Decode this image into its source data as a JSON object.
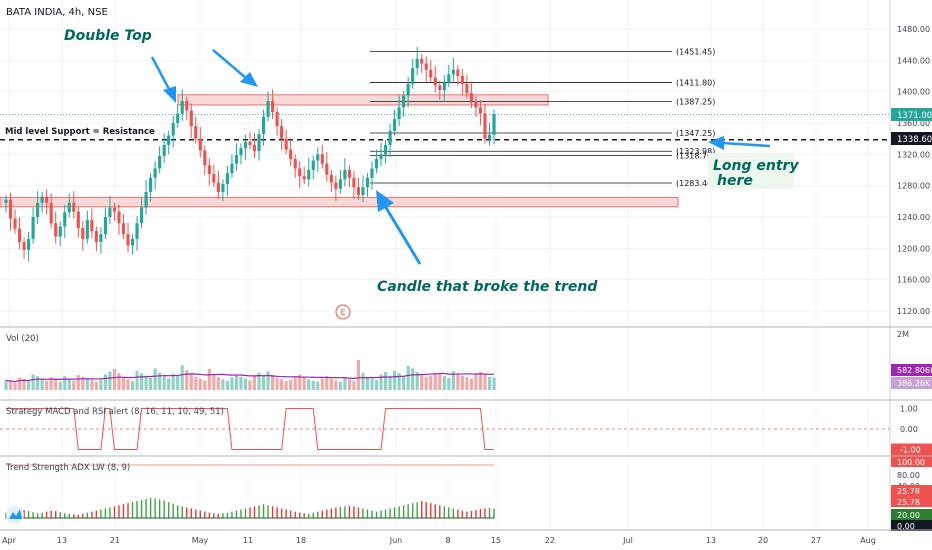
{
  "header": {
    "symbol_line": "BATA INDIA, 4h, NSE"
  },
  "colors": {
    "up": "#26a69a",
    "down": "#ef5350",
    "annotation_text": "#00695c",
    "arrow": "#2196f3",
    "zone_fill": "#f8d7d7",
    "zone_stroke": "#e57373",
    "vol_ma": "#9c27b0",
    "adx": "#ef9a9a"
  },
  "chart_data": [
    {
      "type": "candlestick",
      "title": "BATA INDIA, 4h, NSE",
      "ylim": [
        1100,
        1500
      ],
      "y_ticks": [
        "1480.00",
        "1440.00",
        "1400.00",
        "1360.00",
        "1320.00",
        "1280.00",
        "1240.00",
        "1200.00",
        "1160.00",
        "1120.00"
      ],
      "x_ticks": [
        "Apr",
        "13",
        "21",
        "May",
        "11",
        "18",
        "Jun",
        "8",
        "15",
        "22",
        "Jul",
        "13",
        "20",
        "27",
        "Aug"
      ],
      "price_labels": {
        "last": "1371.00",
        "entry": "1338.60"
      },
      "closes": [
        1262,
        1238,
        1225,
        1208,
        1198,
        1212,
        1240,
        1258,
        1266,
        1258,
        1232,
        1215,
        1228,
        1246,
        1258,
        1247,
        1226,
        1212,
        1236,
        1222,
        1208,
        1218,
        1240,
        1252,
        1247,
        1232,
        1218,
        1204,
        1212,
        1232,
        1252,
        1272,
        1290,
        1302,
        1318,
        1332,
        1344,
        1360,
        1372,
        1388,
        1376,
        1356,
        1340,
        1325,
        1306,
        1295,
        1284,
        1272,
        1282,
        1296,
        1308,
        1319,
        1328,
        1336,
        1332,
        1324,
        1346,
        1368,
        1388,
        1374,
        1356,
        1340,
        1326,
        1314,
        1302,
        1292,
        1288,
        1300,
        1312,
        1320,
        1308,
        1294,
        1284,
        1276,
        1288,
        1300,
        1290,
        1278,
        1268,
        1278,
        1290,
        1302,
        1314,
        1320,
        1332,
        1350,
        1365,
        1380,
        1395,
        1410,
        1430,
        1442,
        1436,
        1428,
        1418,
        1408,
        1402,
        1412,
        1422,
        1428,
        1420,
        1410,
        1398,
        1388,
        1380,
        1372,
        1340,
        1345,
        1371
      ],
      "levels": [
        {
          "label": "(1451.45)",
          "value": 1451.45
        },
        {
          "label": "(1411.80)",
          "value": 1411.8
        },
        {
          "label": "(1387.25)",
          "value": 1387.25
        },
        {
          "label": "(1347.25)",
          "value": 1347.25
        },
        {
          "label": "(1323.98)",
          "value": 1323.98
        },
        {
          "label": "(1318.70)",
          "value": 1318.7
        },
        {
          "label": "(1283.40)",
          "value": 1283.4
        }
      ],
      "zones": [
        {
          "name": "resistance-zone",
          "from": 1383,
          "to": 1396
        },
        {
          "name": "support-zone",
          "from": 1253,
          "to": 1265
        }
      ],
      "mid_level": 1338.6,
      "annotations": {
        "double_top": "Double Top",
        "mid_level": "Mid level Support = Resistance",
        "long_entry_1": "Long entry",
        "long_entry_2": "here",
        "candle_trend": "Candle that broke the trend",
        "earnings_marker": "E"
      }
    },
    {
      "type": "bar",
      "title": "Vol (20)",
      "ylim": [
        0,
        2000
      ],
      "y_ticks": [
        "2M"
      ],
      "values": [
        320,
        280,
        240,
        410,
        360,
        300,
        520,
        460,
        380,
        300,
        420,
        350,
        280,
        460,
        380,
        310,
        500,
        440,
        390,
        330,
        280,
        360,
        520,
        610,
        700,
        560,
        420,
        360,
        300,
        640,
        560,
        480,
        410,
        720,
        580,
        460,
        390,
        540,
        480,
        820,
        660,
        520,
        440,
        380,
        320,
        700,
        520,
        430,
        360,
        300,
        420,
        520,
        440,
        380,
        320,
        460,
        580,
        480,
        620,
        500,
        420,
        360,
        300,
        340,
        420,
        520,
        440,
        360,
        300,
        280,
        380,
        460,
        380,
        320,
        280,
        420,
        360,
        300,
        1000,
        580,
        440,
        380,
        340,
        520,
        600,
        480,
        640,
        560,
        460,
        800,
        720,
        600,
        520,
        440,
        480,
        560,
        520,
        460,
        400,
        620,
        520,
        480,
        420,
        380,
        560,
        600,
        520,
        440,
        420
      ],
      "ma_labels": {
        "ma": "582.806K",
        "last": "386.26K"
      }
    },
    {
      "type": "line",
      "title": "Strategy MACD and RSI alert (8, 16, 11, 10, 49, 51)",
      "ylim": [
        -1.5,
        1.5
      ],
      "y_ticks": [
        "1.00",
        "0.00",
        "-1.00"
      ],
      "values": [
        1,
        1,
        1,
        1,
        1,
        1,
        1,
        1,
        1,
        1,
        1,
        1,
        1,
        1,
        1,
        1,
        -1,
        -1,
        -1,
        -1,
        -1,
        -1,
        1,
        1,
        -1,
        -1,
        -1,
        -1,
        -1,
        -1,
        1,
        1,
        1,
        1,
        1,
        1,
        1,
        1,
        1,
        1,
        1,
        1,
        1,
        1,
        1,
        1,
        1,
        1,
        1,
        1,
        -1,
        -1,
        -1,
        -1,
        -1,
        -1,
        -1,
        -1,
        -1,
        -1,
        -1,
        -1,
        1,
        1,
        1,
        1,
        1,
        1,
        1,
        -1,
        -1,
        -1,
        -1,
        -1,
        -1,
        -1,
        -1,
        -1,
        -1,
        -1,
        -1,
        -1,
        -1,
        -1,
        1,
        1,
        1,
        1,
        1,
        1,
        1,
        1,
        1,
        1,
        1,
        1,
        1,
        1,
        1,
        1,
        1,
        1,
        1,
        1,
        1,
        1,
        -1,
        -1,
        -1
      ]
    },
    {
      "type": "bar",
      "title": "Trend Strength ADX LW (8, 9)",
      "ylim": [
        0,
        110
      ],
      "y_ticks": [
        "100.00",
        "80.00",
        "40.00",
        "25.78",
        "25.78",
        "20.00",
        "0.00"
      ],
      "values": [
        10,
        12,
        14,
        16,
        15,
        13,
        11,
        9,
        10,
        12,
        14,
        13,
        11,
        9,
        8,
        7,
        6,
        8,
        10,
        12,
        14,
        16,
        18,
        20,
        22,
        24,
        26,
        28,
        30,
        32,
        34,
        36,
        38,
        37,
        35,
        33,
        30,
        27,
        24,
        22,
        20,
        18,
        16,
        14,
        12,
        10,
        9,
        8,
        9,
        10,
        12,
        14,
        16,
        18,
        20,
        22,
        24,
        26,
        24,
        22,
        20,
        18,
        16,
        14,
        12,
        10,
        9,
        8,
        10,
        12,
        14,
        16,
        18,
        20,
        21,
        22,
        23,
        22,
        20,
        18,
        16,
        14,
        12,
        14,
        16,
        18,
        20,
        22,
        24,
        26,
        28,
        30,
        32,
        30,
        28,
        26,
        24,
        22,
        20,
        18,
        16,
        14,
        12,
        13,
        15,
        17,
        18,
        19,
        18
      ],
      "reference_level": 100
    }
  ]
}
